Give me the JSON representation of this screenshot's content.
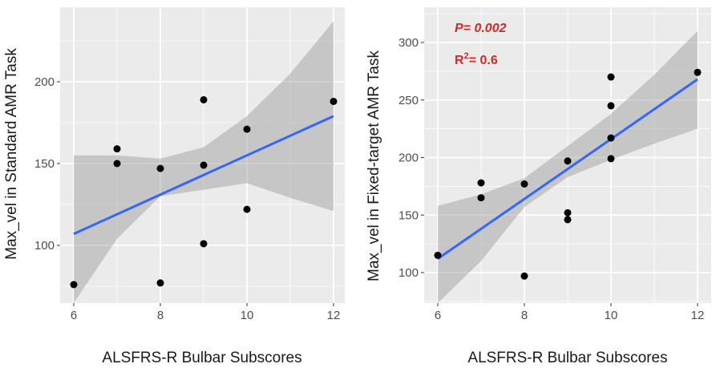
{
  "chart_data": [
    {
      "type": "scatter",
      "xlabel": "ALSFRS-R Bulbar Subscores",
      "ylabel": "Max_vel in Standard AMR Task",
      "xlim": [
        6,
        12
      ],
      "ylim": [
        70,
        240
      ],
      "x_ticks": [
        6,
        8,
        10,
        12
      ],
      "y_ticks": [
        100,
        150,
        200
      ],
      "grid": true,
      "points": [
        {
          "x": 6,
          "y": 76
        },
        {
          "x": 7,
          "y": 159
        },
        {
          "x": 7,
          "y": 150
        },
        {
          "x": 8,
          "y": 147
        },
        {
          "x": 8,
          "y": 77
        },
        {
          "x": 9,
          "y": 189
        },
        {
          "x": 9,
          "y": 149
        },
        {
          "x": 9,
          "y": 101
        },
        {
          "x": 10,
          "y": 171
        },
        {
          "x": 10,
          "y": 122
        },
        {
          "x": 12,
          "y": 188
        }
      ],
      "fit_line": {
        "x": [
          6,
          12
        ],
        "y": [
          107,
          179
        ]
      },
      "confidence_band": {
        "x": [
          6,
          7,
          8,
          9,
          10,
          11,
          12
        ],
        "upper": [
          155,
          155,
          153,
          160,
          179,
          205,
          237
        ],
        "lower": [
          60,
          104,
          130,
          134,
          138,
          129,
          121
        ]
      },
      "colors": {
        "panel": "#ebebeb",
        "grid": "#ffffff",
        "fit": "#3366ff",
        "band": "#999999",
        "point": "#000000"
      }
    },
    {
      "type": "scatter",
      "xlabel": "ALSFRS-R Bulbar Subscores",
      "ylabel": "Max_vel in Fixed-target AMR Task",
      "xlim": [
        6,
        12
      ],
      "ylim": [
        63,
        322
      ],
      "x_ticks": [
        6,
        8,
        10,
        12
      ],
      "y_ticks": [
        100,
        150,
        200,
        250,
        300
      ],
      "grid": true,
      "annotations": {
        "p_value": "P= 0.002",
        "r_squared_base": "R",
        "r_squared_sup": "2",
        "r_squared_rest": "= 0.6"
      },
      "points": [
        {
          "x": 6,
          "y": 115
        },
        {
          "x": 7,
          "y": 178
        },
        {
          "x": 7,
          "y": 165
        },
        {
          "x": 8,
          "y": 177
        },
        {
          "x": 8,
          "y": 97
        },
        {
          "x": 9,
          "y": 197
        },
        {
          "x": 9,
          "y": 152
        },
        {
          "x": 9,
          "y": 146
        },
        {
          "x": 10,
          "y": 270
        },
        {
          "x": 10,
          "y": 245
        },
        {
          "x": 10,
          "y": 217
        },
        {
          "x": 10,
          "y": 199
        },
        {
          "x": 12,
          "y": 274
        }
      ],
      "fit_line": {
        "x": [
          6,
          12
        ],
        "y": [
          112,
          268
        ]
      },
      "confidence_band": {
        "x": [
          6,
          7,
          8,
          9,
          10,
          11,
          12
        ],
        "upper": [
          158,
          168,
          182,
          210,
          238,
          272,
          310
        ],
        "lower": [
          67,
          110,
          157,
          183,
          198,
          212,
          225
        ]
      },
      "colors": {
        "panel": "#ebebeb",
        "grid": "#ffffff",
        "fit": "#3366ff",
        "band": "#999999",
        "point": "#000000",
        "annotation": "#d42a2a"
      }
    }
  ]
}
